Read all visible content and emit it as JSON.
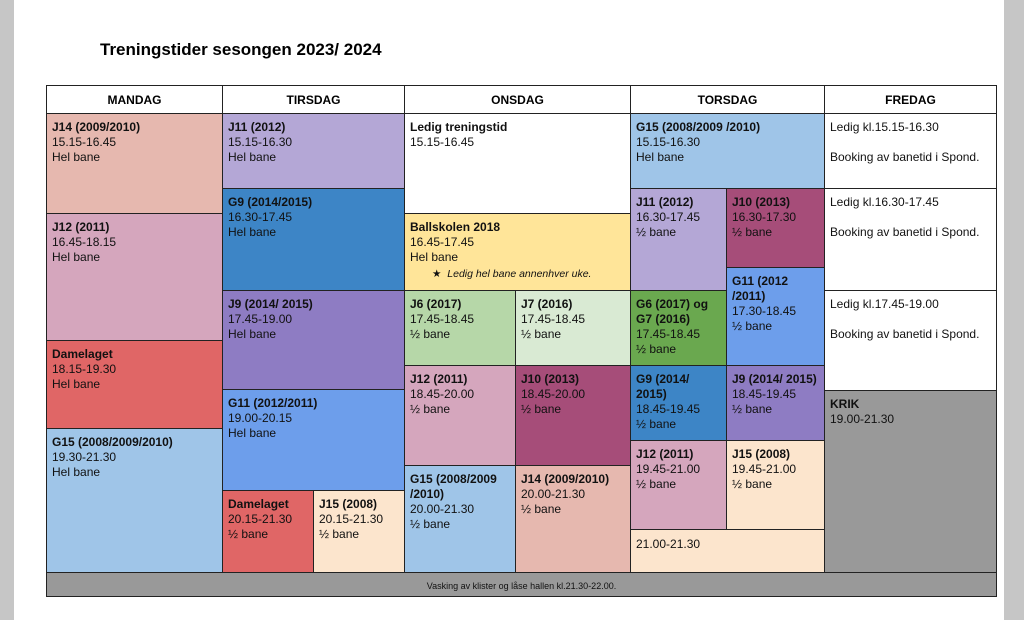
{
  "title": "Treningstider sesongen 2023/ 2024",
  "days": [
    "MANDAG",
    "TIRSDAG",
    "ONSDAG",
    "TORSDAG",
    "FREDAG"
  ],
  "footer": "Vasking av klister og låse hallen kl.21.30-22.00.",
  "mandag": [
    {
      "team": "J14 (2009/2010)",
      "time": "15.15-16.45",
      "court": "Hel bane"
    },
    {
      "team": "J12 (2011)",
      "time": "16.45-18.15",
      "court": "Hel bane"
    },
    {
      "team": "Damelaget",
      "time": "18.15-19.30",
      "court": "Hel bane"
    },
    {
      "team": "G15 (2008/2009/2010)",
      "time": "19.30-21.30",
      "court": "Hel bane"
    }
  ],
  "tirsdag": [
    {
      "team": "J11 (2012)",
      "time": "15.15-16.30",
      "court": "Hel bane"
    },
    {
      "team": "G9 (2014/2015)",
      "time": "16.30-17.45",
      "court": "Hel bane"
    },
    {
      "team": "J9 (2014/ 2015)",
      "time": "17.45-19.00",
      "court": "Hel bane"
    },
    {
      "team": "G11 (2012/2011)",
      "time": "19.00-20.15",
      "court": "Hel bane"
    },
    {
      "team": "Damelaget",
      "time": "20.15-21.30",
      "court": "½ bane"
    },
    {
      "team": "J15 (2008)",
      "time": "20.15-21.30",
      "court": "½ bane"
    }
  ],
  "onsdag": [
    {
      "team": "Ledig treningstid",
      "time": "15.15-16.45"
    },
    {
      "team": "Ballskolen 2018",
      "time": "16.45-17.45",
      "court": "Hel bane",
      "note": "Ledig hel bane annenhver uke."
    },
    {
      "team": "J6 (2017)",
      "time": "17.45-18.45",
      "court": "½ bane"
    },
    {
      "team": "J7 (2016)",
      "time": "17.45-18.45",
      "court": "½ bane"
    },
    {
      "team": "J12 (2011)",
      "time": "18.45-20.00",
      "court": "½ bane"
    },
    {
      "team": "J10 (2013)",
      "time": "18.45-20.00",
      "court": "½ bane"
    },
    {
      "team": "G15 (2008/2009 /2010)",
      "time": "20.00-21.30",
      "court": "½ bane"
    },
    {
      "team": "J14 (2009/2010)",
      "time": "20.00-21.30",
      "court": "½ bane"
    }
  ],
  "torsdag": [
    {
      "team": "G15 (2008/2009 /2010)",
      "time": "15.15-16.30",
      "court": "Hel bane"
    },
    {
      "team": "J11 (2012)",
      "time": "16.30-17.45",
      "court": "½ bane"
    },
    {
      "team": "J10 (2013)",
      "time": "16.30-17.30",
      "court": "½ bane"
    },
    {
      "team": "G11 (2012 /2011)",
      "time": "17.30-18.45",
      "court": "½ bane"
    },
    {
      "team": "G6 (2017) og G7 (2016)",
      "time": "17.45-18.45",
      "court": "½ bane"
    },
    {
      "team": "G9 (2014/ 2015)",
      "time": "18.45-19.45",
      "court": "½ bane"
    },
    {
      "team": "J9 (2014/ 2015)",
      "time": "18.45-19.45",
      "court": "½ bane"
    },
    {
      "team": "J12 (2011)",
      "time": "19.45-21.00",
      "court": "½ bane"
    },
    {
      "team": "J15 (2008)",
      "time": "19.45-21.00",
      "court": "½ bane"
    },
    {
      "time": "21.00-21.30"
    }
  ],
  "fredag": [
    {
      "time": "Ledig kl.15.15-16.30",
      "booking": "Booking av banetid i Spond."
    },
    {
      "time": "Ledig kl.16.30-17.45",
      "booking": "Booking av banetid i Spond."
    },
    {
      "time": "Ledig kl.17.45-19.00",
      "booking": "Booking av banetid i Spond."
    },
    {
      "team": "KRIK",
      "time": "19.00-21.30"
    }
  ],
  "colors": {
    "salmon": "#e6b8af",
    "pink": "#d5a6bd",
    "red": "#e06666",
    "lightblue": "#9fc5e8",
    "lavender": "#b4a7d6",
    "blue": "#3d85c6",
    "purple": "#8e7cc3",
    "medblue": "#6d9eeb",
    "peach": "#fce5cd",
    "yellow": "#ffe599",
    "lightgreen": "#b6d7a8",
    "palegreen": "#d9ead3",
    "plum": "#a64d79",
    "green": "#6aa84f",
    "gray": "#999999"
  }
}
